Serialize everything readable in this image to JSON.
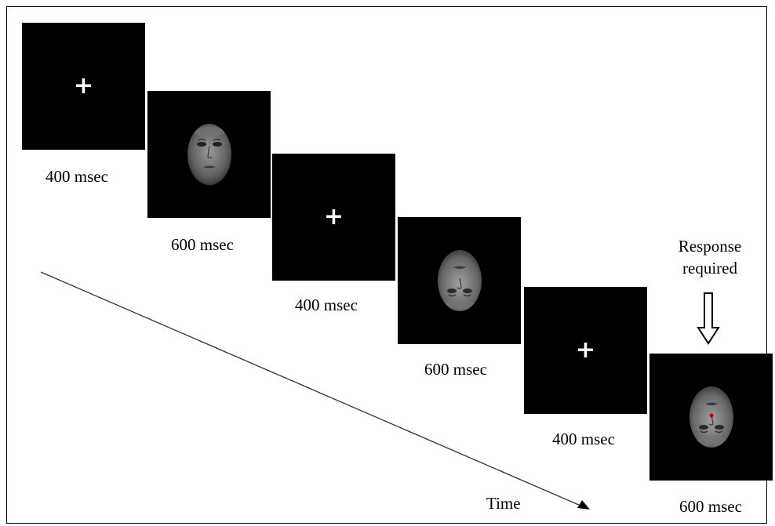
{
  "frames": [
    {
      "kind": "fixation",
      "symbol": "+",
      "duration": "400 msec"
    },
    {
      "kind": "face-upright",
      "duration": "600 msec"
    },
    {
      "kind": "fixation",
      "symbol": "+",
      "duration": "400 msec"
    },
    {
      "kind": "face-inverted",
      "duration": "600 msec"
    },
    {
      "kind": "fixation",
      "symbol": "+",
      "duration": "400 msec"
    },
    {
      "kind": "face-inverted-target",
      "duration": "600 msec"
    }
  ],
  "response": {
    "line1": "Response",
    "line2": "required"
  },
  "time_label": "Time",
  "colors": {
    "screen": "#000000",
    "fixation": "#ffffff",
    "target_dot": "#cc0000"
  }
}
